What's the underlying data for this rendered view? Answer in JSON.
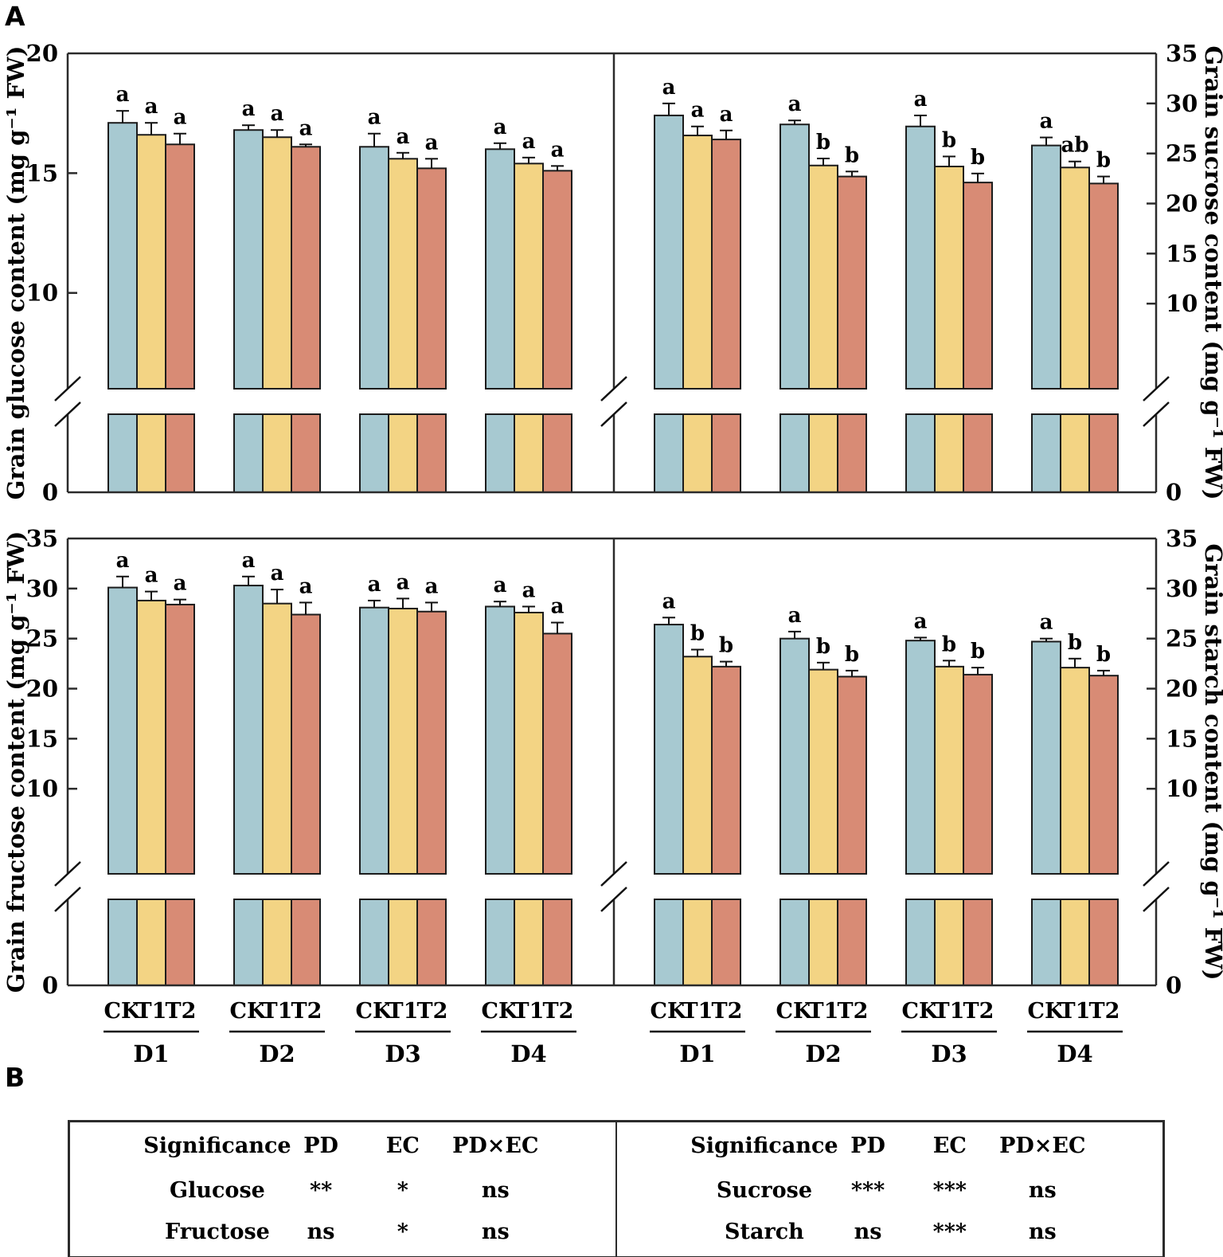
{
  "figure": {
    "panel_a": "A",
    "panel_b": "B"
  },
  "treatments": [
    "CK",
    "T1",
    "T2"
  ],
  "treatment_colors": {
    "CK": "#a7c9d1",
    "T1": "#f3d484",
    "T2": "#d88b75"
  },
  "outline_color": "#1c1c1c",
  "frame_color": "#2b2b2b",
  "chart_data": [
    {
      "id": "glucose",
      "type": "bar",
      "position": "top-left",
      "axis_side": "left",
      "ylabel": "Grain glucose content (mg g⁻¹ FW)",
      "ylim": [
        0,
        20
      ],
      "yticks": [
        0,
        10,
        15,
        20
      ],
      "axis_break_value": 6,
      "grid": false,
      "categories": [
        "D1",
        "D2",
        "D3",
        "D4"
      ],
      "series": [
        {
          "name": "CK",
          "values": [
            17.1,
            16.8,
            16.1,
            16.0
          ],
          "errors": [
            0.5,
            0.2,
            0.55,
            0.25
          ],
          "letters": [
            "a",
            "a",
            "a",
            "a"
          ]
        },
        {
          "name": "T1",
          "values": [
            16.6,
            16.5,
            15.6,
            15.4
          ],
          "errors": [
            0.5,
            0.3,
            0.25,
            0.25
          ],
          "letters": [
            "a",
            "a",
            "a",
            "a"
          ]
        },
        {
          "name": "T2",
          "values": [
            16.2,
            16.1,
            15.2,
            15.1
          ],
          "errors": [
            0.45,
            0.1,
            0.4,
            0.2
          ],
          "letters": [
            "a",
            "a",
            "a",
            "a"
          ]
        }
      ]
    },
    {
      "id": "sucrose",
      "type": "bar",
      "position": "top-right",
      "axis_side": "right",
      "ylabel": "Grain sucrose content (mg g⁻¹ FW)",
      "ylim": [
        0,
        35
      ],
      "yticks": [
        0,
        10,
        15,
        20,
        25,
        30,
        35
      ],
      "axis_break_value": 1.5,
      "grid": false,
      "categories": [
        "D1",
        "D2",
        "D3",
        "D4"
      ],
      "series": [
        {
          "name": "CK",
          "values": [
            28.8,
            27.9,
            27.7,
            25.8
          ],
          "errors": [
            1.2,
            0.4,
            1.1,
            0.8
          ],
          "letters": [
            "a",
            "a",
            "a",
            "a"
          ]
        },
        {
          "name": "T1",
          "values": [
            26.8,
            23.8,
            23.7,
            23.6
          ],
          "errors": [
            0.9,
            0.7,
            1.0,
            0.6
          ],
          "letters": [
            "a",
            "b",
            "b",
            "ab"
          ]
        },
        {
          "name": "T2",
          "values": [
            26.4,
            22.7,
            22.1,
            22.0
          ],
          "errors": [
            0.9,
            0.5,
            0.9,
            0.7
          ],
          "letters": [
            "a",
            "b",
            "b",
            "b"
          ]
        }
      ]
    },
    {
      "id": "fructose",
      "type": "bar",
      "position": "bottom-left",
      "axis_side": "left",
      "ylabel": "Grain fructose content (mg g⁻¹ FW)",
      "ylim": [
        0,
        35
      ],
      "yticks": [
        0,
        10,
        15,
        20,
        25,
        30,
        35
      ],
      "axis_break_value": 1.5,
      "grid": false,
      "categories": [
        "D1",
        "D2",
        "D3",
        "D4"
      ],
      "series": [
        {
          "name": "CK",
          "values": [
            30.1,
            30.3,
            28.1,
            28.2
          ],
          "errors": [
            1.1,
            0.9,
            0.7,
            0.5
          ],
          "letters": [
            "a",
            "a",
            "a",
            "a"
          ]
        },
        {
          "name": "T1",
          "values": [
            28.8,
            28.5,
            28.0,
            27.6
          ],
          "errors": [
            0.9,
            1.4,
            1.0,
            0.6
          ],
          "letters": [
            "a",
            "a",
            "a",
            "a"
          ]
        },
        {
          "name": "T2",
          "values": [
            28.4,
            27.4,
            27.7,
            25.5
          ],
          "errors": [
            0.5,
            1.2,
            0.9,
            1.1
          ],
          "letters": [
            "a",
            "a",
            "a",
            "a"
          ]
        }
      ]
    },
    {
      "id": "starch",
      "type": "bar",
      "position": "bottom-right",
      "axis_side": "right",
      "ylabel": "Grain starch content (mg g⁻¹ FW)",
      "ylim": [
        0,
        35
      ],
      "yticks": [
        0,
        10,
        15,
        20,
        25,
        30,
        35
      ],
      "axis_break_value": 1.5,
      "grid": false,
      "categories": [
        "D1",
        "D2",
        "D3",
        "D4"
      ],
      "series": [
        {
          "name": "CK",
          "values": [
            26.4,
            25.0,
            24.8,
            24.7
          ],
          "errors": [
            0.7,
            0.7,
            0.3,
            0.3
          ],
          "letters": [
            "a",
            "a",
            "a",
            "a"
          ]
        },
        {
          "name": "T1",
          "values": [
            23.2,
            21.9,
            22.2,
            22.1
          ],
          "errors": [
            0.7,
            0.7,
            0.6,
            0.9
          ],
          "letters": [
            "b",
            "b",
            "b",
            "b"
          ]
        },
        {
          "name": "T2",
          "values": [
            22.2,
            21.2,
            21.4,
            21.3
          ],
          "errors": [
            0.5,
            0.6,
            0.7,
            0.5
          ],
          "letters": [
            "b",
            "b",
            "b",
            "b"
          ]
        }
      ]
    }
  ],
  "significance_table": {
    "header": [
      "Significance",
      "PD",
      "EC",
      "PD×EC"
    ],
    "halves": [
      {
        "rows": [
          {
            "label": "Glucose",
            "pd": "**",
            "ec": "*",
            "pdxec": "ns"
          },
          {
            "label": "Fructose",
            "pd": "ns",
            "ec": "*",
            "pdxec": "ns"
          }
        ]
      },
      {
        "rows": [
          {
            "label": "Sucrose",
            "pd": "***",
            "ec": "***",
            "pdxec": "ns"
          },
          {
            "label": "Starch",
            "pd": "ns",
            "ec": "***",
            "pdxec": "ns"
          }
        ]
      }
    ]
  }
}
